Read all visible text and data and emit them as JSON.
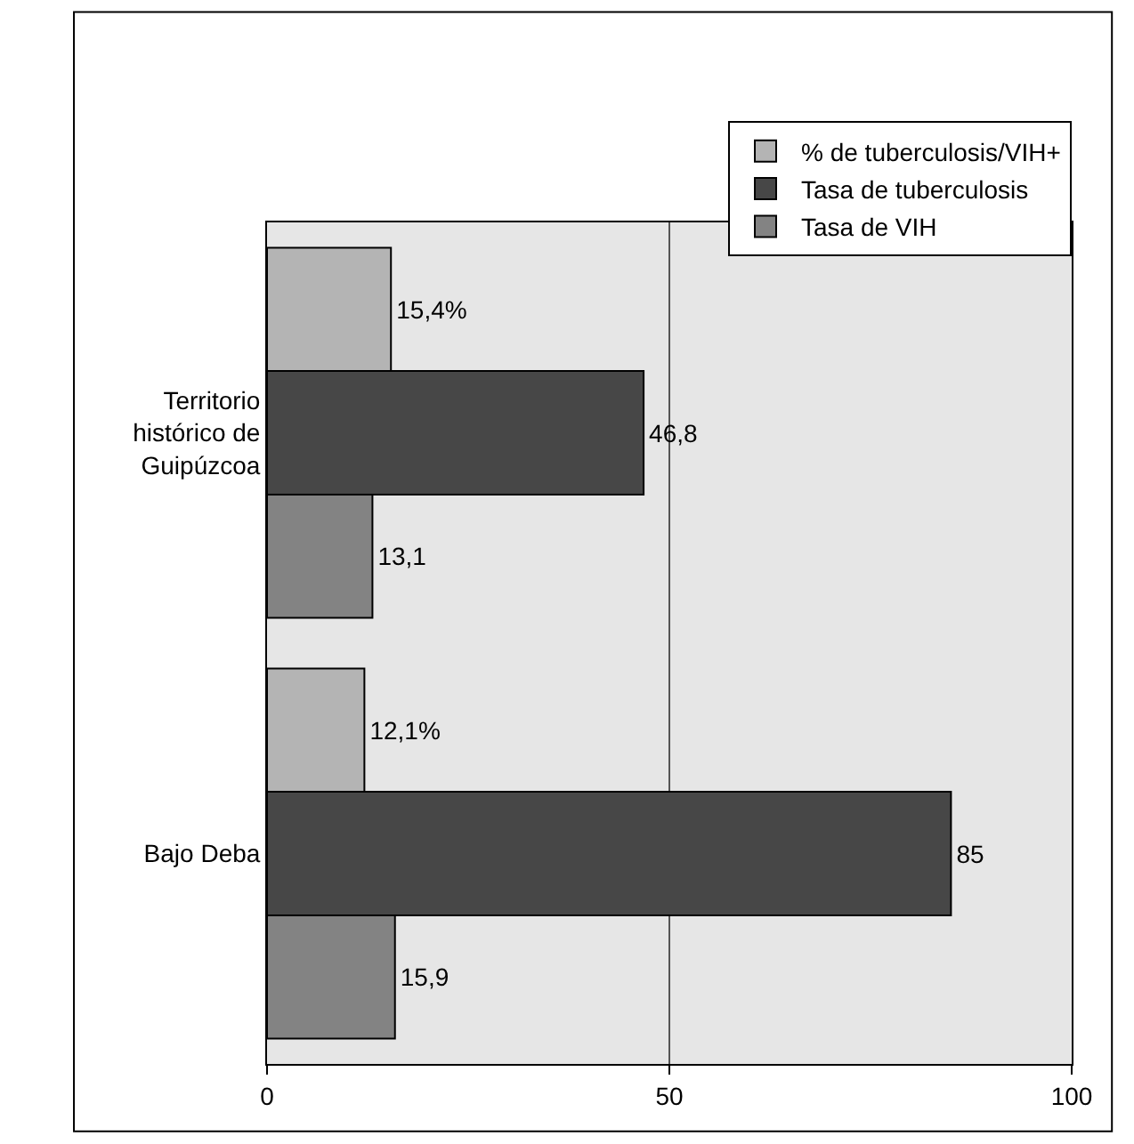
{
  "chart_data": {
    "type": "bar",
    "orientation": "horizontal",
    "categories": [
      "Territorio histórico de Guipúzcoa",
      "Bajo Deba"
    ],
    "series": [
      {
        "name": "% de tuberculosis/VIH+",
        "color": "#b4b4b4",
        "values": [
          15.4,
          12.1
        ],
        "value_labels": [
          "15,4%",
          "12,1%"
        ]
      },
      {
        "name": "Tasa de tuberculosis",
        "color": "#474747",
        "values": [
          46.8,
          85
        ],
        "value_labels": [
          "46,8",
          "85"
        ]
      },
      {
        "name": "Tasa de VIH",
        "color": "#838383",
        "values": [
          13.1,
          15.9
        ],
        "value_labels": [
          "13,1",
          "15,9"
        ]
      }
    ],
    "xlim": [
      0,
      100
    ],
    "xticks": [
      0,
      50,
      100
    ],
    "grid": "x",
    "legend": "top right"
  }
}
